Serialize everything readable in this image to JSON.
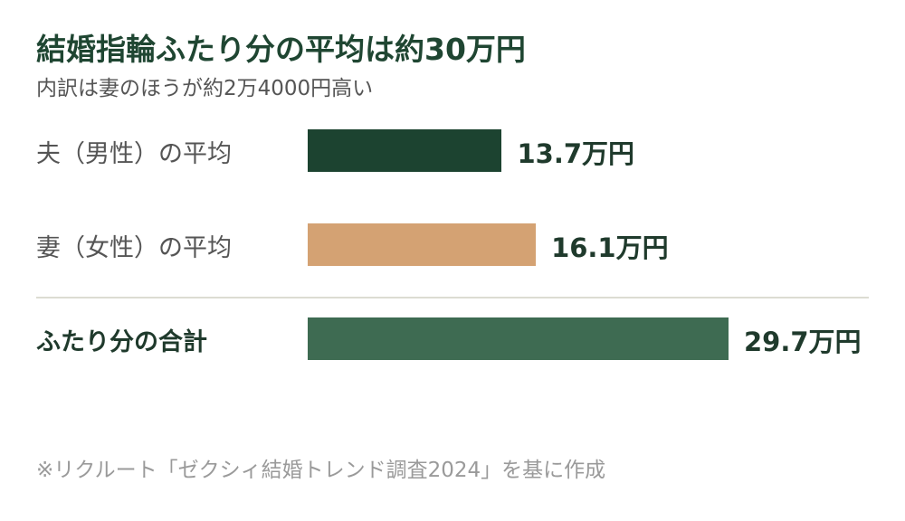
{
  "title": "結婚指輪ふたり分の平均は約30万円",
  "subtitle": "内訳は妻のほうが約2万4000円高い",
  "source": "※リクルート「ゼクシィ結婚トレンド調査2024」を基に作成",
  "colors": {
    "title": "#1f4632",
    "husband_bar": "#1c4330",
    "wife_bar": "#d4a273",
    "total_bar": "#3e6b52"
  },
  "chart_data": {
    "type": "bar",
    "orientation": "horizontal",
    "title": "結婚指輪ふたり分の平均は約30万円",
    "subtitle": "内訳は妻のほうが約2万4000円高い",
    "unit": "万円",
    "categories": [
      "夫（男性）の平均",
      "妻（女性）の平均",
      "ふたり分の合計"
    ],
    "values": [
      13.7,
      16.1,
      29.7
    ],
    "value_labels": [
      "13.7万円",
      "16.1万円",
      "29.7万円"
    ],
    "xlim": [
      0,
      35
    ],
    "grid": false,
    "legend": "none"
  }
}
